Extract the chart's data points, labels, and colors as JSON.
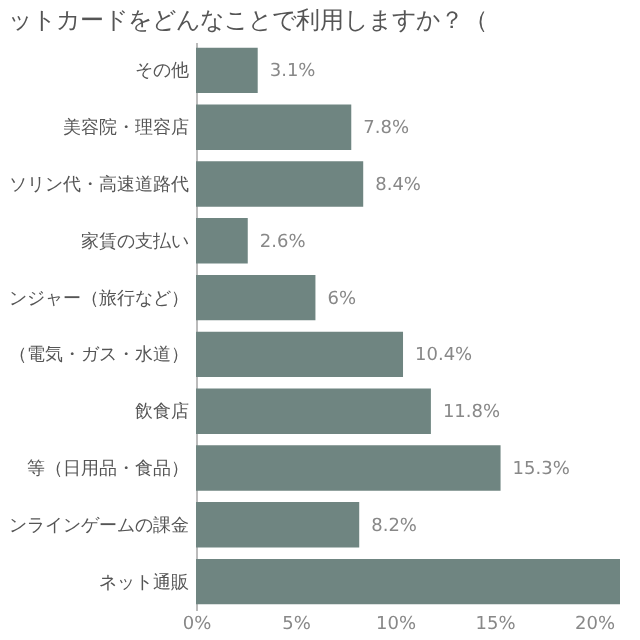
{
  "chart_data": {
    "type": "bar",
    "orientation": "horizontal",
    "title": "ットカードをどんなことで利用しますか？（",
    "categories": [
      "その他",
      "美容院・理容店",
      "ソリン代・高速道路代",
      "家賃の支払い",
      "ンジャー（旅行など）",
      "（電気・ガス・水道）",
      "飲食店",
      "等（日用品・食品）",
      "ンラインゲームの課金",
      "ネット通販"
    ],
    "values": [
      3.1,
      7.8,
      8.4,
      2.6,
      6,
      10.4,
      11.8,
      15.3,
      8.2,
      21.3
    ],
    "value_labels": [
      "3.1%",
      "7.8%",
      "8.4%",
      "2.6%",
      "6%",
      "10.4%",
      "11.8%",
      "15.3%",
      "8.2%",
      null
    ],
    "color": "#6f8581",
    "xlim": [
      0,
      21.3
    ],
    "xticks": [
      {
        "value": 0,
        "label": "0%"
      },
      {
        "value": 5,
        "label": "5%"
      },
      {
        "value": 10,
        "label": "10%"
      },
      {
        "value": 15,
        "label": "15%"
      },
      {
        "value": 20,
        "label": "20%"
      }
    ],
    "grid": false
  }
}
